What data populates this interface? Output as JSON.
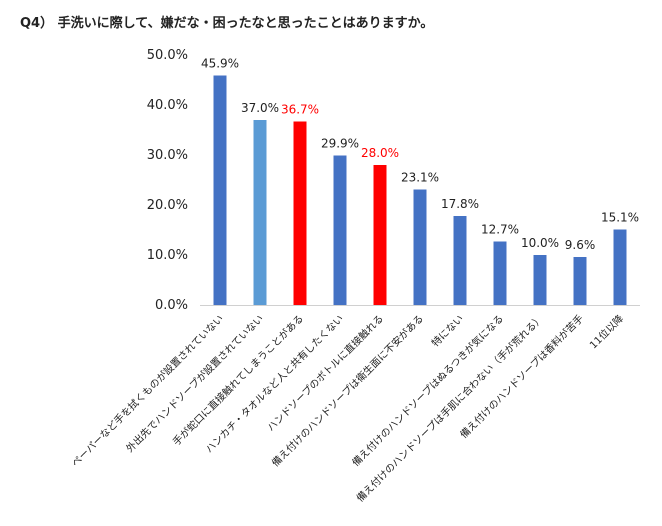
{
  "chart_data": {
    "type": "bar",
    "title": "Q4） 手洗いに際して、嫌だな・困ったなと思ったことはありますか。",
    "xlabel": "",
    "ylabel": "",
    "ylim": [
      0,
      50
    ],
    "y_ticks": [
      "0.0%",
      "10.0%",
      "20.0%",
      "30.0%",
      "40.0%",
      "50.0%"
    ],
    "grid": false,
    "categories": [
      "ペーパーなど手を拭くものが設置されていない",
      "外出先でハンドソープが設置されていない",
      "手が蛇口に直接触れてしまうことがある",
      "ハンカチ・タオルなど人と共有したくない",
      "ハンドソープのボトルに直接触れる",
      "備え付けのハンドソープは衛生面に不安がある",
      "特にない",
      "備え付けのハンドソープはぬるつきが気になる",
      "備え付けのハンドソープは手肌に合わない（手が荒れる）",
      "備え付けのハンドソープは香料が苦手",
      "11位以降"
    ],
    "values": [
      45.9,
      37.0,
      36.7,
      29.9,
      28.0,
      23.1,
      17.8,
      12.7,
      10.0,
      9.6,
      15.1
    ],
    "value_labels": [
      "45.9%",
      "37.0%",
      "36.7%",
      "29.9%",
      "28.0%",
      "23.1%",
      "17.8%",
      "12.7%",
      "10.0%",
      "9.6%",
      "15.1%"
    ],
    "bar_colors": [
      "#4472c4",
      "#5b9bd5",
      "#ff0000",
      "#4472c4",
      "#ff0000",
      "#4472c4",
      "#4472c4",
      "#4472c4",
      "#4472c4",
      "#4472c4",
      "#4472c4"
    ],
    "label_colors": [
      "#222222",
      "#222222",
      "#ff0000",
      "#222222",
      "#ff0000",
      "#222222",
      "#222222",
      "#222222",
      "#222222",
      "#222222",
      "#222222"
    ]
  }
}
